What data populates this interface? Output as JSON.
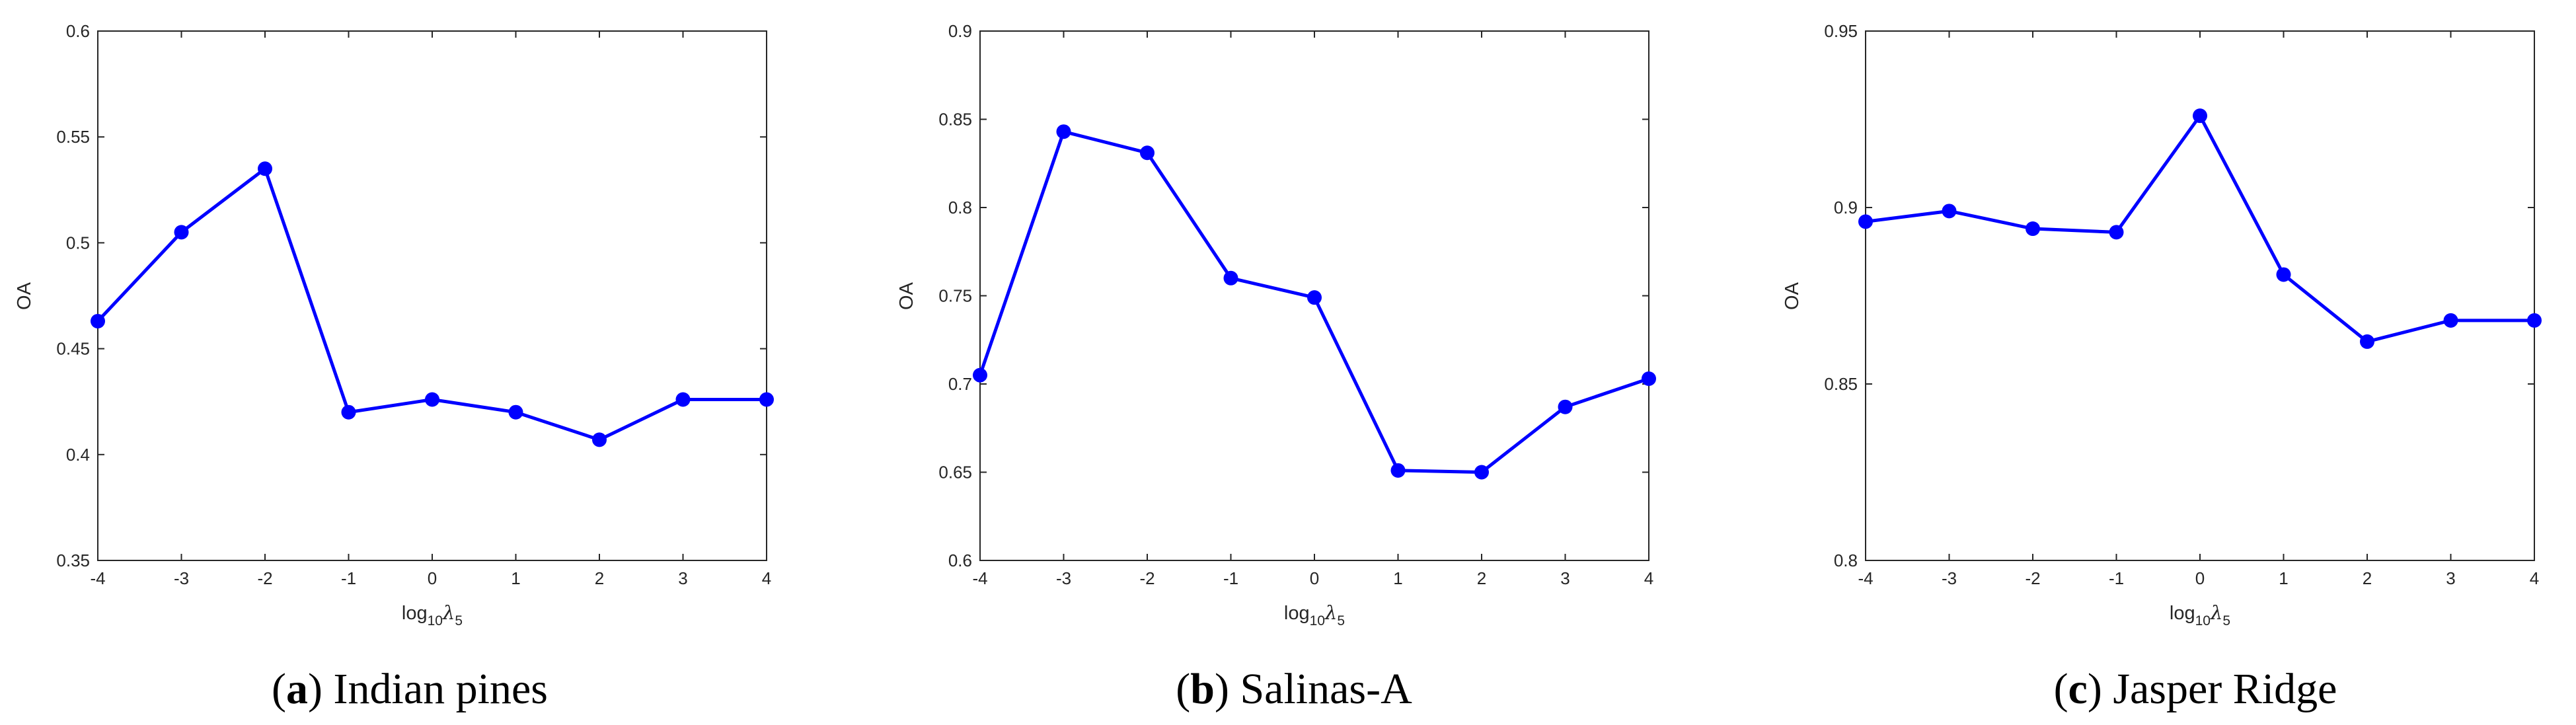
{
  "chart_data": [
    {
      "type": "line",
      "panel": "a",
      "title": "Indian pines",
      "xlabel": {
        "base": "log",
        "sub": "10",
        "sym": "λ",
        "sym_sub": "5"
      },
      "ylabel": "OA",
      "x": [
        -4,
        -3,
        -2,
        -1,
        0,
        1,
        2,
        3,
        4
      ],
      "series": [
        {
          "name": "OA",
          "values": [
            0.463,
            0.505,
            0.535,
            0.42,
            0.426,
            0.42,
            0.407,
            0.426,
            0.426
          ]
        }
      ],
      "xlim": [
        -4,
        4
      ],
      "ylim": [
        0.35,
        0.6
      ],
      "xticks": [
        "-4",
        "-3",
        "-2",
        "-1",
        "0",
        "1",
        "2",
        "3",
        "4"
      ],
      "yticks": [
        "0.35",
        "0.4",
        "0.45",
        "0.5",
        "0.55",
        "0.6"
      ],
      "ytick_values": [
        0.35,
        0.4,
        0.45,
        0.5,
        0.55,
        0.6
      ],
      "line_color": "#0000ff"
    },
    {
      "type": "line",
      "panel": "b",
      "title": "Salinas-A",
      "xlabel": {
        "base": "log",
        "sub": "10",
        "sym": "λ",
        "sym_sub": "5"
      },
      "ylabel": "OA",
      "x": [
        -4,
        -3,
        -2,
        -1,
        0,
        1,
        2,
        3,
        4
      ],
      "series": [
        {
          "name": "OA",
          "values": [
            0.705,
            0.843,
            0.831,
            0.76,
            0.749,
            0.651,
            0.65,
            0.687,
            0.703
          ]
        }
      ],
      "xlim": [
        -4,
        4
      ],
      "ylim": [
        0.6,
        0.9
      ],
      "xticks": [
        "-4",
        "-3",
        "-2",
        "-1",
        "0",
        "1",
        "2",
        "3",
        "4"
      ],
      "yticks": [
        "0.6",
        "0.65",
        "0.7",
        "0.75",
        "0.8",
        "0.85",
        "0.9"
      ],
      "ytick_values": [
        0.6,
        0.65,
        0.7,
        0.75,
        0.8,
        0.85,
        0.9
      ],
      "line_color": "#0000ff"
    },
    {
      "type": "line",
      "panel": "c",
      "title": "Jasper Ridge",
      "xlabel": {
        "base": "log",
        "sub": "10",
        "sym": "λ",
        "sym_sub": "5"
      },
      "ylabel": "OA",
      "x": [
        -4,
        -3,
        -2,
        -1,
        0,
        1,
        2,
        3,
        4
      ],
      "series": [
        {
          "name": "OA",
          "values": [
            0.896,
            0.899,
            0.894,
            0.893,
            0.926,
            0.881,
            0.862,
            0.868,
            0.868
          ]
        }
      ],
      "xlim": [
        -4,
        4
      ],
      "ylim": [
        0.8,
        0.95
      ],
      "xticks": [
        "-4",
        "-3",
        "-2",
        "-1",
        "0",
        "1",
        "2",
        "3",
        "4"
      ],
      "yticks": [
        "0.8",
        "0.85",
        "0.9",
        "0.95"
      ],
      "ytick_values": [
        0.8,
        0.85,
        0.9,
        0.95
      ],
      "line_color": "#0000ff"
    }
  ],
  "captions": [
    {
      "letter": "a",
      "text": "Indian pines"
    },
    {
      "letter": "b",
      "text": "Salinas-A"
    },
    {
      "letter": "c",
      "text": "Jasper Ridge"
    }
  ]
}
